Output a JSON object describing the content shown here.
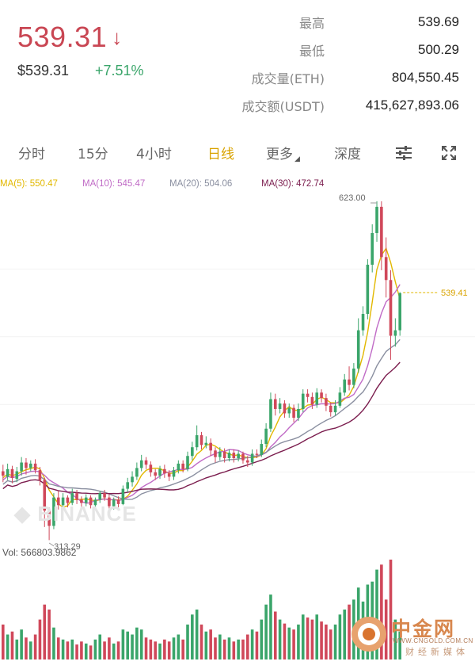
{
  "header": {
    "price": "539.31",
    "price_arrow": "↓",
    "price_usd": "$539.31",
    "change_pct": "+7.51%",
    "stats": [
      {
        "label": "最高",
        "value": "539.69"
      },
      {
        "label": "最低",
        "value": "500.29"
      },
      {
        "label": "成交量(ETH)",
        "value": "804,550.45"
      },
      {
        "label": "成交额(USDT)",
        "value": "415,627,893.06"
      }
    ]
  },
  "tabs": {
    "items": [
      {
        "label": "分时"
      },
      {
        "label": "15分"
      },
      {
        "label": "4小时"
      },
      {
        "label": "日线",
        "active": true
      },
      {
        "label": "更多"
      },
      {
        "label": "深度"
      }
    ],
    "settings_icon": "sliders-icon",
    "fullscreen_icon": "expand-icon"
  },
  "ma": {
    "ma5": "MA(5): 550.47",
    "ma10": "MA(10): 545.47",
    "ma20": "MA(20): 504.06",
    "ma30": "MA(30): 472.74",
    "colors": {
      "ma5": "#e2b800",
      "ma10": "#c06bc6",
      "ma20": "#8a8fa0",
      "ma30": "#7b1d4e"
    }
  },
  "chart_data": {
    "type": "candlestick",
    "high_label": "623.00",
    "low_label": "313.29",
    "current_price_label": "539.41",
    "volume_label": "Vol: 566803.9862",
    "colors": {
      "up": "#3aa56a",
      "down": "#d0485a"
    },
    "candles": [
      [
        376,
        372,
        382,
        366
      ],
      [
        371,
        378,
        383,
        368
      ],
      [
        378,
        370,
        381,
        365
      ],
      [
        369,
        376,
        380,
        366
      ],
      [
        376,
        384,
        389,
        372
      ],
      [
        384,
        379,
        388,
        373
      ],
      [
        379,
        383,
        386,
        376
      ],
      [
        383,
        377,
        387,
        374
      ],
      [
        377,
        368,
        380,
        363
      ],
      [
        368,
        340,
        370,
        325
      ],
      [
        340,
        326,
        343,
        313
      ],
      [
        326,
        352,
        356,
        323
      ],
      [
        352,
        345,
        358,
        341
      ],
      [
        345,
        352,
        356,
        342
      ],
      [
        352,
        347,
        354,
        343
      ],
      [
        347,
        356,
        360,
        345
      ],
      [
        356,
        350,
        359,
        346
      ],
      [
        350,
        347,
        353,
        343
      ],
      [
        347,
        352,
        355,
        344
      ],
      [
        352,
        345,
        354,
        342
      ],
      [
        345,
        350,
        352,
        341
      ],
      [
        350,
        356,
        358,
        347
      ],
      [
        356,
        352,
        359,
        349
      ],
      [
        352,
        344,
        355,
        341
      ],
      [
        344,
        350,
        352,
        341
      ],
      [
        350,
        346,
        353,
        343
      ],
      [
        346,
        360,
        363,
        345
      ],
      [
        360,
        366,
        370,
        357
      ],
      [
        366,
        371,
        376,
        362
      ],
      [
        371,
        379,
        384,
        368
      ],
      [
        379,
        386,
        391,
        376
      ],
      [
        386,
        382,
        389,
        378
      ],
      [
        382,
        375,
        385,
        371
      ],
      [
        375,
        372,
        378,
        368
      ],
      [
        372,
        378,
        381,
        369
      ],
      [
        378,
        374,
        382,
        370
      ],
      [
        374,
        371,
        377,
        367
      ],
      [
        371,
        377,
        380,
        368
      ],
      [
        377,
        383,
        386,
        374
      ],
      [
        383,
        378,
        386,
        375
      ],
      [
        378,
        390,
        394,
        376
      ],
      [
        390,
        398,
        403,
        386
      ],
      [
        398,
        409,
        418,
        395
      ],
      [
        409,
        400,
        412,
        396
      ],
      [
        400,
        402,
        408,
        397
      ],
      [
        402,
        395,
        406,
        390
      ],
      [
        395,
        389,
        398,
        384
      ],
      [
        389,
        394,
        398,
        386
      ],
      [
        394,
        388,
        397,
        384
      ],
      [
        388,
        393,
        396,
        385
      ],
      [
        393,
        388,
        396,
        384
      ],
      [
        388,
        392,
        395,
        385
      ],
      [
        392,
        386,
        394,
        383
      ],
      [
        386,
        384,
        390,
        380
      ],
      [
        384,
        392,
        396,
        381
      ],
      [
        392,
        391,
        396,
        388
      ],
      [
        391,
        401,
        405,
        389
      ],
      [
        401,
        415,
        420,
        398
      ],
      [
        415,
        442,
        448,
        412
      ],
      [
        442,
        433,
        447,
        427
      ],
      [
        433,
        438,
        443,
        429
      ],
      [
        438,
        429,
        441,
        425
      ],
      [
        429,
        434,
        438,
        425
      ],
      [
        434,
        425,
        437,
        421
      ],
      [
        425,
        433,
        438,
        422
      ],
      [
        433,
        447,
        451,
        430
      ],
      [
        447,
        444,
        451,
        439
      ],
      [
        444,
        437,
        448,
        433
      ],
      [
        437,
        448,
        452,
        434
      ],
      [
        448,
        443,
        451,
        439
      ],
      [
        443,
        436,
        447,
        431
      ],
      [
        436,
        430,
        439,
        426
      ],
      [
        430,
        436,
        441,
        427
      ],
      [
        436,
        448,
        453,
        434
      ],
      [
        448,
        460,
        465,
        445
      ],
      [
        460,
        455,
        472,
        450
      ],
      [
        455,
        470,
        475,
        452
      ],
      [
        470,
        505,
        516,
        466
      ],
      [
        505,
        520,
        527,
        500
      ],
      [
        520,
        565,
        570,
        515
      ],
      [
        565,
        594,
        602,
        558
      ],
      [
        594,
        618,
        623,
        586
      ],
      [
        618,
        572,
        623,
        560
      ],
      [
        572,
        551,
        590,
        535
      ],
      [
        551,
        500,
        560,
        478
      ],
      [
        500,
        505,
        516,
        490
      ],
      [
        505,
        539,
        540,
        500
      ]
    ],
    "volumes": [
      0.35,
      0.25,
      0.28,
      0.2,
      0.3,
      0.22,
      0.18,
      0.25,
      0.4,
      0.55,
      0.5,
      0.32,
      0.22,
      0.2,
      0.18,
      0.2,
      0.15,
      0.18,
      0.16,
      0.14,
      0.2,
      0.25,
      0.18,
      0.22,
      0.16,
      0.18,
      0.3,
      0.28,
      0.25,
      0.32,
      0.3,
      0.22,
      0.2,
      0.18,
      0.16,
      0.2,
      0.18,
      0.22,
      0.25,
      0.2,
      0.35,
      0.45,
      0.5,
      0.35,
      0.28,
      0.3,
      0.22,
      0.25,
      0.2,
      0.22,
      0.18,
      0.2,
      0.2,
      0.25,
      0.3,
      0.28,
      0.4,
      0.55,
      0.65,
      0.48,
      0.4,
      0.36,
      0.32,
      0.3,
      0.35,
      0.45,
      0.42,
      0.4,
      0.45,
      0.38,
      0.35,
      0.3,
      0.35,
      0.45,
      0.5,
      0.55,
      0.6,
      0.72,
      0.58,
      0.75,
      0.78,
      0.9,
      0.95,
      0.6,
      1.0,
      0.4,
      0.28
    ]
  },
  "logo": {
    "text": "中金网",
    "url_text": "WWW.CNGOLD.COM.CN",
    "sub": "财经新媒体"
  }
}
